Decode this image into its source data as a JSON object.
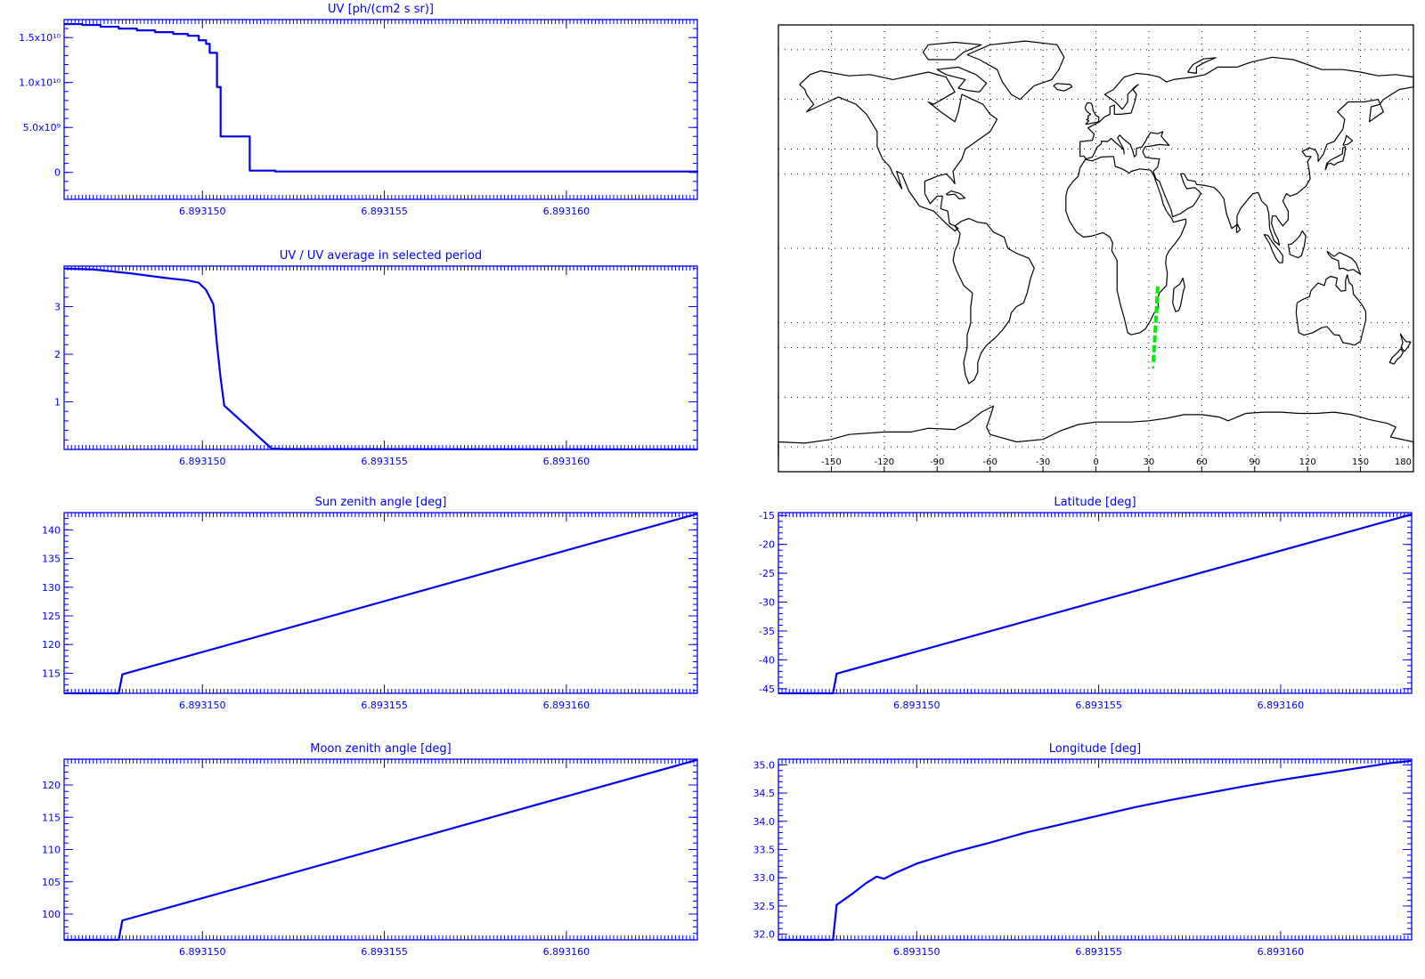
{
  "colors": {
    "axis": "#0000ee",
    "series": "#0000ee",
    "track": "#00ee00",
    "coast": "#000000"
  },
  "x_tick_labels": [
    "6.893150",
    "6.893155",
    "6.893160"
  ],
  "chart_data": [
    {
      "id": "uv",
      "type": "line",
      "title": "UV [ph/(cm2 s sr)]",
      "step": true,
      "xlim": [
        6.8931462,
        6.8931636
      ],
      "xticks": [
        6.89315,
        6.893155,
        6.89316
      ],
      "ylim": [
        -3000000000.0,
        17000000000.0
      ],
      "yticks": [
        0,
        5000000000.0,
        10000000000.0,
        15000000000.0
      ],
      "ytick_labels": [
        "0",
        "5.0x10⁹",
        "1.0x10¹⁰",
        "1.5x10¹⁰"
      ],
      "x": [
        6.8931462,
        6.8931467,
        6.8931472,
        6.8931477,
        6.8931482,
        6.8931487,
        6.8931492,
        6.8931496,
        6.8931499,
        6.8931501,
        6.8931502,
        6.8931504,
        6.8931505,
        6.8931506,
        6.8931513,
        6.893152,
        6.8931636
      ],
      "y": [
        16500000000.0,
        16400000000.0,
        16200000000.0,
        16000000000.0,
        15800000000.0,
        15600000000.0,
        15400000000.0,
        15200000000.0,
        14700000000.0,
        14300000000.0,
        13300000000.0,
        9500000000.0,
        4000000000.0,
        4000000000.0,
        200000000.0,
        100000000.0,
        0.0
      ]
    },
    {
      "id": "uv-ratio",
      "type": "line",
      "title": "UV / UV average in selected period",
      "xlim": [
        6.8931462,
        6.8931636
      ],
      "xticks": [
        6.89315,
        6.893155,
        6.89316
      ],
      "ylim": [
        0,
        3.85
      ],
      "yticks": [
        1,
        2,
        3
      ],
      "ytick_labels": [
        "1",
        "2",
        "3"
      ],
      "x": [
        6.8931462,
        6.893147,
        6.893148,
        6.893149,
        6.8931496,
        6.8931499,
        6.8931501,
        6.8931503,
        6.8931504,
        6.8931505,
        6.8931506,
        6.8931519,
        6.8931522,
        6.8931636
      ],
      "y": [
        3.8,
        3.78,
        3.7,
        3.6,
        3.55,
        3.5,
        3.35,
        3.05,
        2.2,
        1.5,
        0.92,
        0.02,
        0.01,
        0.0
      ]
    },
    {
      "id": "sun-zenith",
      "type": "line",
      "title": "Sun zenith angle [deg]",
      "xlim": [
        6.8931462,
        6.8931636
      ],
      "xticks": [
        6.89315,
        6.893155,
        6.89316
      ],
      "ylim": [
        111.5,
        143.0
      ],
      "yticks": [
        115,
        120,
        125,
        130,
        135,
        140
      ],
      "ytick_labels": [
        "115",
        "120",
        "125",
        "130",
        "135",
        "140"
      ],
      "x": [
        6.8931462,
        6.8931477,
        6.8931478,
        6.8931636
      ],
      "y": [
        111.5,
        111.5,
        114.8,
        142.8
      ]
    },
    {
      "id": "latitude",
      "type": "line",
      "title": "Latitude [deg]",
      "xlim": [
        6.8931462,
        6.8931636
      ],
      "xticks": [
        6.89315,
        6.893155,
        6.89316
      ],
      "ylim": [
        -45.8,
        -14.5
      ],
      "yticks": [
        -45,
        -40,
        -35,
        -30,
        -25,
        -20,
        -15
      ],
      "ytick_labels": [
        "-45",
        "-40",
        "-35",
        "-30",
        "-25",
        "-20",
        "-15"
      ],
      "x": [
        6.8931462,
        6.8931477,
        6.8931478,
        6.8931636
      ],
      "y": [
        -45.8,
        -45.8,
        -42.4,
        -14.8
      ]
    },
    {
      "id": "moon-zenith",
      "type": "line",
      "title": "Moon zenith angle [deg]",
      "xlim": [
        6.8931462,
        6.8931636
      ],
      "xticks": [
        6.89315,
        6.893155,
        6.89316
      ],
      "ylim": [
        96.0,
        124.0
      ],
      "yticks": [
        100,
        105,
        110,
        115,
        120
      ],
      "ytick_labels": [
        "100",
        "105",
        "110",
        "115",
        "120"
      ],
      "x": [
        6.8931462,
        6.8931477,
        6.8931478,
        6.8931636
      ],
      "y": [
        96.0,
        96.0,
        99.0,
        123.9
      ]
    },
    {
      "id": "longitude",
      "type": "line",
      "title": "Longitude [deg]",
      "xlim": [
        6.8931462,
        6.8931636
      ],
      "xticks": [
        6.89315,
        6.893155,
        6.89316
      ],
      "ylim": [
        31.9,
        35.1
      ],
      "yticks": [
        32.0,
        32.5,
        33.0,
        33.5,
        34.0,
        34.5,
        35.0
      ],
      "ytick_labels": [
        "32.0",
        "32.5",
        "33.0",
        "33.5",
        "34.0",
        "34.5",
        "35.0"
      ],
      "x": [
        6.8931462,
        6.8931477,
        6.8931478,
        6.8931482,
        6.8931486,
        6.8931489,
        6.8931491,
        6.8931494,
        6.89315,
        6.893151,
        6.893152,
        6.893153,
        6.893154,
        6.893155,
        6.893156,
        6.893157,
        6.893158,
        6.893159,
        6.89316,
        6.893161,
        6.893162,
        6.893163,
        6.8931636
      ],
      "y": [
        31.9,
        31.9,
        32.52,
        32.7,
        32.9,
        33.02,
        32.98,
        33.08,
        33.25,
        33.45,
        33.62,
        33.8,
        33.95,
        34.1,
        34.25,
        34.38,
        34.5,
        34.62,
        34.73,
        34.83,
        34.93,
        35.03,
        35.07
      ]
    },
    {
      "id": "ground-track-map",
      "type": "map",
      "projection": "cylindrical",
      "lon_range": [
        -180,
        180
      ],
      "lat_range": [
        -90,
        90
      ],
      "lon_tick_labels": [
        "-150",
        "-120",
        "-90",
        "-60",
        "-30",
        "0",
        "30",
        "60",
        "90",
        "120",
        "150",
        "180"
      ],
      "grid": true,
      "track": {
        "lon": [
          32.5,
          32.9,
          33.3,
          33.7,
          34.1,
          34.5,
          34.9,
          35.07
        ],
        "lat": [
          -45.8,
          -41.5,
          -37.0,
          -32.5,
          -28.0,
          -23.0,
          -18.0,
          -14.8
        ]
      }
    }
  ]
}
